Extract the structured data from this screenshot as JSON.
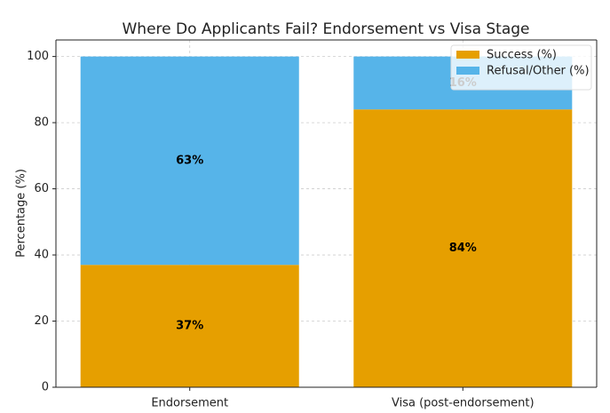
{
  "chart_data": {
    "type": "stacked_bar",
    "title": "Where Do Applicants Fail? Endorsement vs Visa Stage",
    "y_label": "Percentage (%)",
    "categories": [
      "Endorsement",
      "Visa (post-endorsement)"
    ],
    "series": [
      {
        "name": "Success (%)",
        "color": "#e69f00",
        "values": [
          37,
          84
        ],
        "value_labels": [
          "37%",
          "84%"
        ]
      },
      {
        "name": "Refusal/Other (%)",
        "color": "#56b4e9",
        "values": [
          63,
          16
        ],
        "value_labels": [
          "63%",
          "16%"
        ]
      }
    ],
    "ylim": [
      0,
      105
    ],
    "yticks": [
      0,
      20,
      40,
      60,
      80,
      100
    ],
    "grid": true,
    "legend": "upper-right"
  }
}
